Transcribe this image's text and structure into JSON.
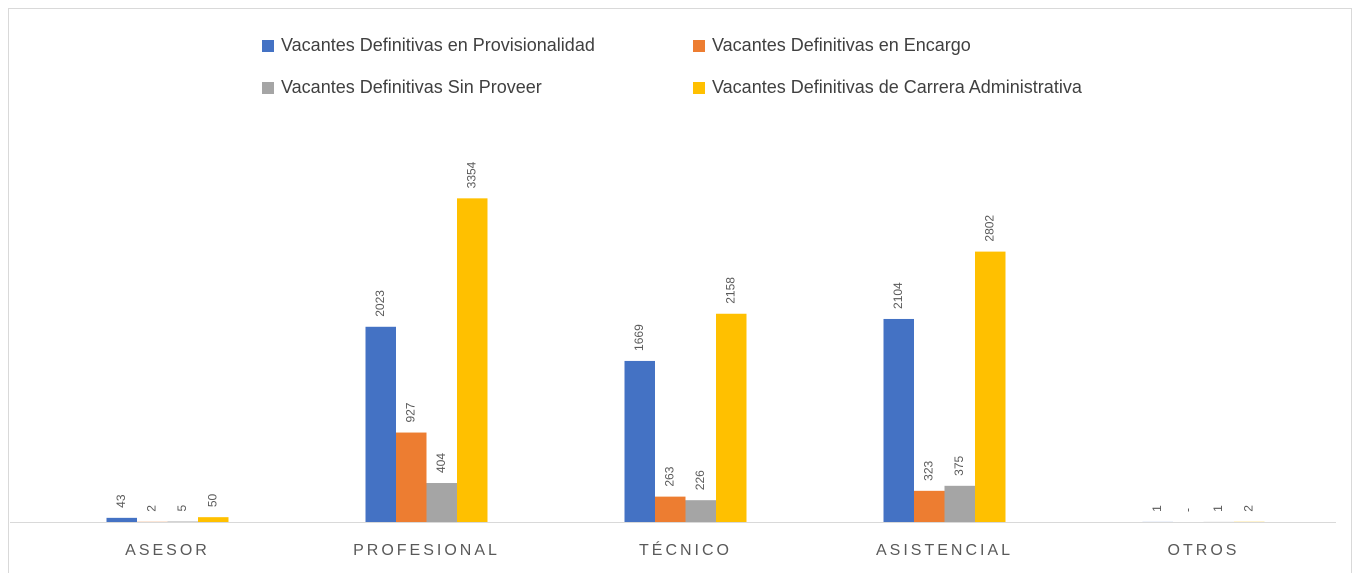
{
  "chart_data": {
    "type": "bar",
    "categories": [
      "ASESOR",
      "PROFESIONAL",
      "TÉCNICO",
      "ASISTENCIAL",
      "OTROS"
    ],
    "series": [
      {
        "name": "Vacantes Definitivas en Provisionalidad",
        "color": "#4472c4",
        "values": [
          43,
          2023,
          1669,
          2104,
          1
        ]
      },
      {
        "name": "Vacantes Definitivas en Encargo",
        "color": "#ed7d31",
        "values": [
          2,
          927,
          263,
          323,
          0
        ],
        "value_labels": [
          "2",
          "927",
          "263",
          "323",
          "-"
        ]
      },
      {
        "name": "Vacantes Definitivas Sin Proveer",
        "color": "#a5a5a5",
        "values": [
          5,
          404,
          226,
          375,
          1
        ]
      },
      {
        "name": "Vacantes Definitivas de Carrera Administrativa",
        "color": "#ffc000",
        "values": [
          50,
          3354,
          2158,
          2802,
          2
        ]
      }
    ],
    "ylim": [
      0,
      4000
    ],
    "grid": false
  }
}
